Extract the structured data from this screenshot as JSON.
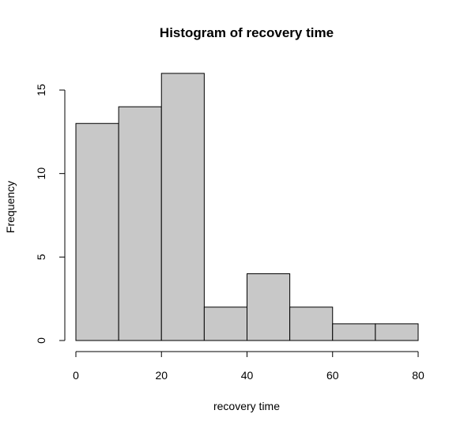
{
  "chart_data": {
    "type": "bar",
    "title": "Histogram of recovery time",
    "xlabel": "recovery time",
    "ylabel": "Frequency",
    "bins": [
      [
        0,
        10
      ],
      [
        10,
        20
      ],
      [
        20,
        30
      ],
      [
        30,
        40
      ],
      [
        40,
        50
      ],
      [
        50,
        60
      ],
      [
        60,
        70
      ],
      [
        70,
        80
      ]
    ],
    "values": [
      13,
      14,
      16,
      2,
      4,
      2,
      1,
      1
    ],
    "xlim": [
      0,
      80
    ],
    "ylim": [
      0,
      16
    ],
    "x_ticks": [
      "0",
      "20",
      "40",
      "60",
      "80"
    ],
    "y_ticks": [
      "0",
      "5",
      "10",
      "15"
    ],
    "grid": false,
    "colors": {
      "bar_fill": "#c8c8c8",
      "bar_stroke": "#000000"
    }
  }
}
